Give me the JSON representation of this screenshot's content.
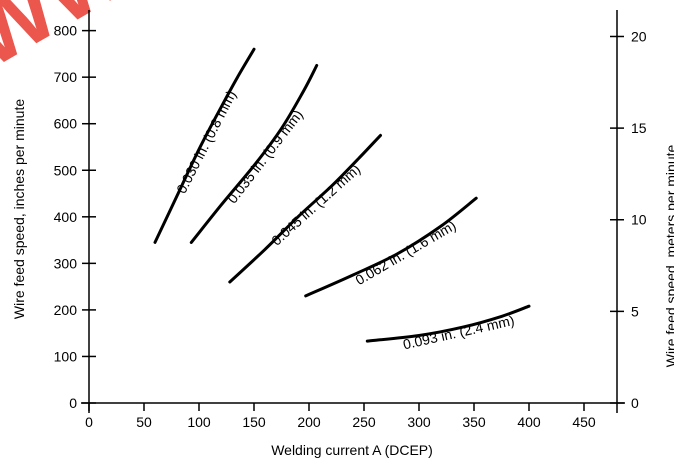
{
  "chart_data": {
    "type": "line",
    "title": "",
    "xlabel": "Welding current A (DCEP)",
    "ylabel": "Wire feed speed, inches per minute",
    "y2label": "Wire feed speed, meters per minute",
    "xlim": [
      0,
      480
    ],
    "ylim": [
      0,
      840
    ],
    "y2lim": [
      0,
      21.336
    ],
    "x_ticks": [
      0,
      50,
      100,
      150,
      200,
      250,
      300,
      350,
      400,
      450
    ],
    "y_ticks": [
      0,
      100,
      200,
      300,
      400,
      500,
      600,
      700,
      800
    ],
    "y2_ticks": [
      0,
      5,
      10,
      15,
      20
    ],
    "grid": false,
    "legend": "none",
    "series": [
      {
        "name": "0.030 in. (0.8 mm)",
        "x": [
          60,
          80,
          100,
          120,
          135,
          150
        ],
        "y": [
          345,
          445,
          545,
          635,
          700,
          760
        ]
      },
      {
        "name": "0.035 in. (0.9 mm)",
        "x": [
          93,
          120,
          150,
          175,
          195,
          207
        ],
        "y": [
          345,
          425,
          510,
          590,
          670,
          725
        ]
      },
      {
        "name": "0.045 in. (1.2 mm)",
        "x": [
          128,
          160,
          190,
          220,
          245,
          265
        ],
        "y": [
          260,
          330,
          400,
          465,
          525,
          575
        ]
      },
      {
        "name": "0.062 in. (1.6 mm)",
        "x": [
          197,
          240,
          280,
          320,
          352
        ],
        "y": [
          230,
          275,
          320,
          380,
          440
        ]
      },
      {
        "name": "0.093 in. (2.4 mm)",
        "x": [
          253,
          300,
          340,
          375,
          400
        ],
        "y": [
          133,
          145,
          163,
          186,
          208
        ]
      }
    ],
    "watermark": "WW"
  }
}
